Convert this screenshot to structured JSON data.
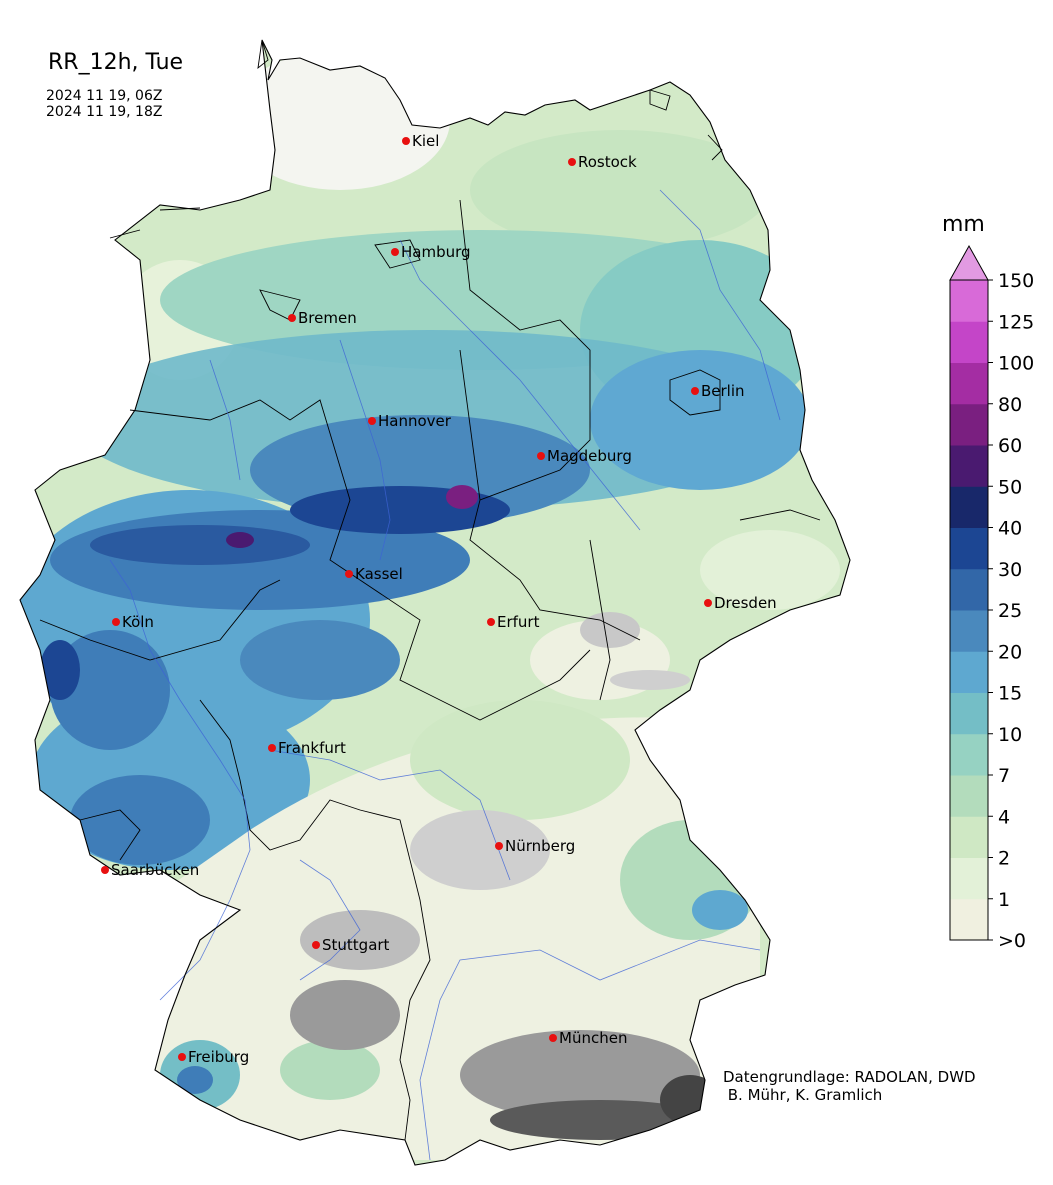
{
  "title": "RR_12h, Tue",
  "period_start": "2024 11 19, 06Z",
  "period_end": "2024 11 19, 18Z",
  "credit_line1": "Datengrundlage: RADOLAN, DWD",
  "credit_line2": " B. Mühr, K. Gramlich",
  "colorbar": {
    "unit": "mm",
    "ticks": [
      ">0",
      "1",
      "2",
      "4",
      "7",
      "10",
      "15",
      "20",
      "25",
      "30",
      "40",
      "50",
      "60",
      "80",
      "100",
      "125",
      "150"
    ],
    "colors": [
      "#f0f0e0",
      "#e3f1d8",
      "#cfe8c4",
      "#b3dcbc",
      "#96d2c2",
      "#74bec6",
      "#5ea8d0",
      "#4a89bd",
      "#3267a8",
      "#1c4693",
      "#18286a",
      "#4a1a70",
      "#7a1f80",
      "#a42da3",
      "#c445c8",
      "#d86ad8",
      "#e29ae2"
    ]
  },
  "cities": [
    {
      "name": "Kiel"
    },
    {
      "name": "Rostock"
    },
    {
      "name": "Hamburg"
    },
    {
      "name": "Bremen"
    },
    {
      "name": "Berlin"
    },
    {
      "name": "Hannover"
    },
    {
      "name": "Magdeburg"
    },
    {
      "name": "Kassel"
    },
    {
      "name": "Dresden"
    },
    {
      "name": "Köln"
    },
    {
      "name": "Erfurt"
    },
    {
      "name": "Frankfurt"
    },
    {
      "name": "Nürnberg"
    },
    {
      "name": "Saarbücken"
    },
    {
      "name": "Stuttgart"
    },
    {
      "name": "München"
    },
    {
      "name": "Freiburg"
    }
  ]
}
